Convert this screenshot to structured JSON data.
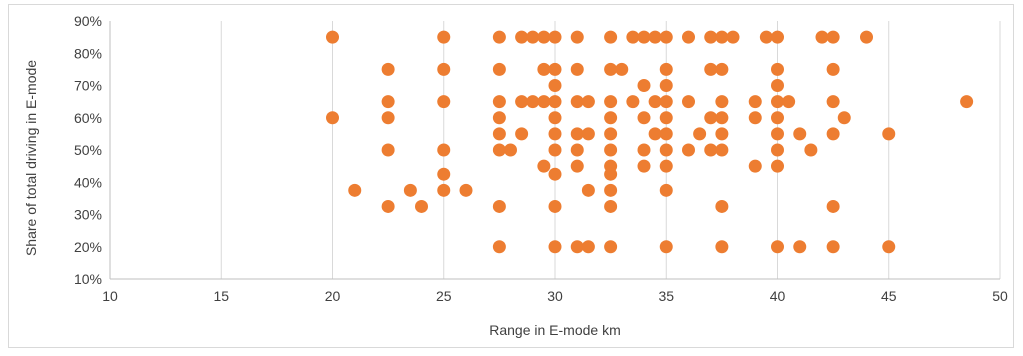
{
  "chart_data": {
    "type": "scatter",
    "title": "",
    "xlabel": "Range in E-mode km",
    "ylabel": "Share of total driving in E-mode",
    "xlim": [
      10,
      50
    ],
    "ylim": [
      0.1,
      0.9
    ],
    "x_ticks": [
      10,
      15,
      20,
      25,
      30,
      35,
      40,
      45,
      50
    ],
    "x_tick_labels": [
      "10",
      "15",
      "20",
      "25",
      "30",
      "35",
      "40",
      "45",
      "50"
    ],
    "y_ticks": [
      0.1,
      0.2,
      0.3,
      0.4,
      0.5,
      0.6,
      0.7,
      0.8,
      0.9
    ],
    "y_tick_labels": [
      "10%",
      "20%",
      "30%",
      "40%",
      "50%",
      "60%",
      "70%",
      "80%",
      "90%"
    ],
    "grid": {
      "vertical": true,
      "horizontal": false
    },
    "legend": "none",
    "marker_color": "#ED7D31",
    "series": [
      {
        "points": [
          [
            20,
            0.85
          ],
          [
            20,
            0.6
          ],
          [
            21,
            0.375
          ],
          [
            22.5,
            0.75
          ],
          [
            22.5,
            0.65
          ],
          [
            22.5,
            0.6
          ],
          [
            22.5,
            0.5
          ],
          [
            22.5,
            0.325
          ],
          [
            23.5,
            0.375
          ],
          [
            24,
            0.325
          ],
          [
            25,
            0.85
          ],
          [
            25,
            0.75
          ],
          [
            25,
            0.65
          ],
          [
            25,
            0.5
          ],
          [
            25,
            0.425
          ],
          [
            25,
            0.375
          ],
          [
            26,
            0.375
          ],
          [
            27.5,
            0.85
          ],
          [
            27.5,
            0.75
          ],
          [
            27.5,
            0.65
          ],
          [
            27.5,
            0.6
          ],
          [
            27.5,
            0.55
          ],
          [
            27.5,
            0.5
          ],
          [
            27.5,
            0.325
          ],
          [
            27.5,
            0.2
          ],
          [
            28,
            0.5
          ],
          [
            28.5,
            0.85
          ],
          [
            28.5,
            0.65
          ],
          [
            28.5,
            0.55
          ],
          [
            29,
            0.85
          ],
          [
            29,
            0.65
          ],
          [
            29.5,
            0.85
          ],
          [
            29.5,
            0.75
          ],
          [
            29.5,
            0.65
          ],
          [
            29.5,
            0.45
          ],
          [
            30,
            0.85
          ],
          [
            30,
            0.75
          ],
          [
            30,
            0.7
          ],
          [
            30,
            0.65
          ],
          [
            30,
            0.6
          ],
          [
            30,
            0.55
          ],
          [
            30,
            0.5
          ],
          [
            30,
            0.425
          ],
          [
            30,
            0.325
          ],
          [
            30,
            0.2
          ],
          [
            31,
            0.85
          ],
          [
            31,
            0.75
          ],
          [
            31,
            0.65
          ],
          [
            31,
            0.55
          ],
          [
            31,
            0.5
          ],
          [
            31,
            0.45
          ],
          [
            31,
            0.2
          ],
          [
            31.5,
            0.65
          ],
          [
            31.5,
            0.55
          ],
          [
            31.5,
            0.375
          ],
          [
            31.5,
            0.2
          ],
          [
            32.5,
            0.85
          ],
          [
            32.5,
            0.75
          ],
          [
            32.5,
            0.65
          ],
          [
            32.5,
            0.6
          ],
          [
            32.5,
            0.55
          ],
          [
            32.5,
            0.5
          ],
          [
            32.5,
            0.45
          ],
          [
            32.5,
            0.425
          ],
          [
            32.5,
            0.375
          ],
          [
            32.5,
            0.325
          ],
          [
            32.5,
            0.2
          ],
          [
            33,
            0.75
          ],
          [
            33.5,
            0.85
          ],
          [
            33.5,
            0.65
          ],
          [
            34,
            0.85
          ],
          [
            34,
            0.7
          ],
          [
            34,
            0.6
          ],
          [
            34,
            0.5
          ],
          [
            34,
            0.45
          ],
          [
            34.5,
            0.85
          ],
          [
            34.5,
            0.65
          ],
          [
            34.5,
            0.55
          ],
          [
            35,
            0.85
          ],
          [
            35,
            0.75
          ],
          [
            35,
            0.7
          ],
          [
            35,
            0.65
          ],
          [
            35,
            0.6
          ],
          [
            35,
            0.55
          ],
          [
            35,
            0.5
          ],
          [
            35,
            0.45
          ],
          [
            35,
            0.375
          ],
          [
            35,
            0.2
          ],
          [
            36,
            0.85
          ],
          [
            36,
            0.65
          ],
          [
            36,
            0.5
          ],
          [
            36.5,
            0.55
          ],
          [
            37,
            0.85
          ],
          [
            37,
            0.75
          ],
          [
            37,
            0.6
          ],
          [
            37,
            0.5
          ],
          [
            37.5,
            0.85
          ],
          [
            37.5,
            0.75
          ],
          [
            37.5,
            0.65
          ],
          [
            37.5,
            0.6
          ],
          [
            37.5,
            0.55
          ],
          [
            37.5,
            0.5
          ],
          [
            37.5,
            0.325
          ],
          [
            37.5,
            0.2
          ],
          [
            38,
            0.85
          ],
          [
            39,
            0.65
          ],
          [
            39,
            0.6
          ],
          [
            39,
            0.45
          ],
          [
            39.5,
            0.85
          ],
          [
            40,
            0.85
          ],
          [
            40,
            0.75
          ],
          [
            40,
            0.7
          ],
          [
            40,
            0.65
          ],
          [
            40,
            0.6
          ],
          [
            40,
            0.55
          ],
          [
            40,
            0.5
          ],
          [
            40,
            0.45
          ],
          [
            40,
            0.2
          ],
          [
            40.5,
            0.65
          ],
          [
            41,
            0.55
          ],
          [
            41,
            0.2
          ],
          [
            41.5,
            0.5
          ],
          [
            42,
            0.85
          ],
          [
            42.5,
            0.85
          ],
          [
            42.5,
            0.75
          ],
          [
            42.5,
            0.65
          ],
          [
            42.5,
            0.55
          ],
          [
            42.5,
            0.325
          ],
          [
            42.5,
            0.2
          ],
          [
            43,
            0.6
          ],
          [
            44,
            0.85
          ],
          [
            45,
            0.55
          ],
          [
            45,
            0.2
          ],
          [
            48.5,
            0.65
          ]
        ]
      }
    ]
  }
}
